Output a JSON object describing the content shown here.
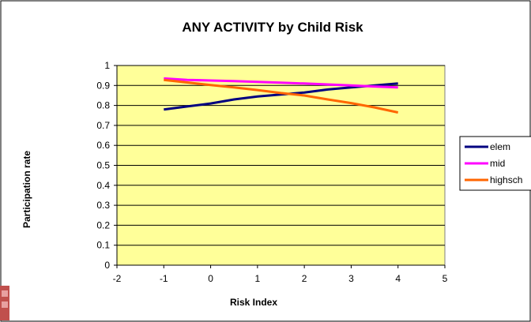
{
  "chart_data": {
    "type": "line",
    "title": "ANY ACTIVITY by Child Risk",
    "xlabel": "Risk Index",
    "ylabel": "Participation rate",
    "xlim": [
      -2,
      5
    ],
    "ylim": [
      0,
      1
    ],
    "x_ticks": [
      -2,
      -1,
      0,
      1,
      2,
      3,
      4,
      5
    ],
    "y_ticks": [
      0,
      0.1,
      0.2,
      0.3,
      0.4,
      0.5,
      0.6,
      0.7,
      0.8,
      0.9,
      1
    ],
    "x_tick_labels": [
      "-2",
      "-1",
      "0",
      "1",
      "2",
      "3",
      "4",
      "5"
    ],
    "y_tick_labels": [
      "0",
      "0.1",
      "0.2",
      "0.3",
      "0.4",
      "0.5",
      "0.6",
      "0.7",
      "0.8",
      "0.9",
      "1"
    ],
    "plot_background": "#FFFF99",
    "grid": "horizontal",
    "legend_position": "right",
    "series": [
      {
        "name": "elem",
        "color": "#000080",
        "x": [
          -1,
          -0.5,
          0,
          0.5,
          1,
          1.5,
          2,
          2.5,
          3,
          3.5,
          4
        ],
        "y": [
          0.78,
          0.795,
          0.81,
          0.83,
          0.845,
          0.855,
          0.865,
          0.88,
          0.89,
          0.9,
          0.91
        ]
      },
      {
        "name": "mid",
        "color": "#FF00FF",
        "x": [
          -1,
          -0.5,
          0,
          0.5,
          1,
          1.5,
          2,
          2.5,
          3,
          3.5,
          4
        ],
        "y": [
          0.935,
          0.928,
          0.925,
          0.922,
          0.918,
          0.914,
          0.91,
          0.905,
          0.9,
          0.895,
          0.89
        ]
      },
      {
        "name": "highsch",
        "color": "#FF6600",
        "x": [
          -1,
          -0.5,
          0,
          0.5,
          1,
          1.5,
          2,
          2.5,
          3,
          3.5,
          4
        ],
        "y": [
          0.928,
          0.915,
          0.902,
          0.89,
          0.877,
          0.862,
          0.85,
          0.83,
          0.812,
          0.79,
          0.765
        ]
      }
    ]
  }
}
